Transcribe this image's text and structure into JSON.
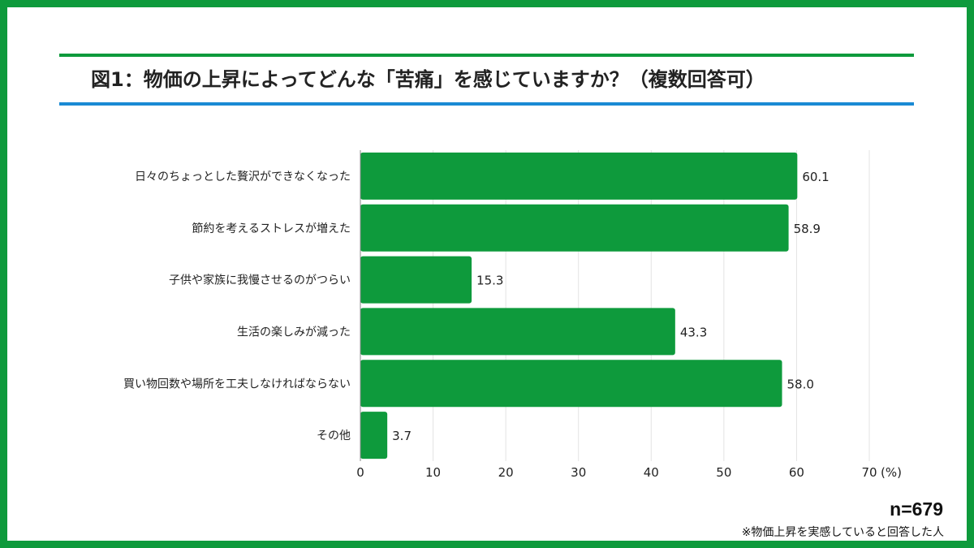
{
  "title": "図1：物価の上昇によってどんな「苦痛」を感じていますか？（複数回答可）",
  "sample_size": "n=679",
  "footnote": "※物価上昇を実感していると回答した人",
  "colors": {
    "frame": "#0e9a3c",
    "bar": "#0e9a3c",
    "title_rule_top": "#0e9a3c",
    "title_rule_bottom": "#1a8ad4",
    "grid": "#e3e3e3"
  },
  "chart_data": {
    "type": "bar",
    "orientation": "horizontal",
    "categories": [
      "日々のちょっとした贅沢ができなくなった",
      "節約を考えるストレスが増えた",
      "子供や家族に我慢させるのがつらい",
      "生活の楽しみが減った",
      "買い物回数や場所を工夫しなければならない",
      "その他"
    ],
    "values": [
      60.1,
      58.9,
      15.3,
      43.3,
      58.0,
      3.7
    ],
    "value_labels": [
      "60.1",
      "58.9",
      "15.3",
      "43.3",
      "58.0",
      "3.7"
    ],
    "xlim": [
      0,
      70
    ],
    "xticks": [
      0,
      10,
      20,
      30,
      40,
      50,
      60,
      70
    ],
    "xunit": "(%)",
    "grid": true,
    "legend": "none"
  }
}
